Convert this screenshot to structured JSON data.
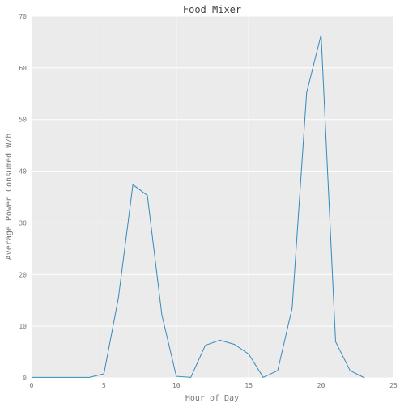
{
  "chart_data": {
    "type": "line",
    "title": "Food Mixer",
    "xlabel": "Hour of Day",
    "ylabel": "Average Power Consumed W/h",
    "xlim": [
      0,
      25
    ],
    "ylim": [
      0,
      70
    ],
    "xticks": [
      0,
      5,
      10,
      15,
      20,
      25
    ],
    "yticks": [
      0,
      10,
      20,
      30,
      40,
      50,
      60,
      70
    ],
    "grid": true,
    "background": "#ebebeb",
    "grid_color": "#ffffff",
    "series": [
      {
        "color": "#348abd",
        "x": [
          0,
          1,
          2,
          3,
          4,
          5,
          6,
          7,
          8,
          9,
          10,
          11,
          12,
          13,
          14,
          15,
          16,
          17,
          18,
          19,
          20,
          21,
          22,
          23
        ],
        "y": [
          0.1,
          0.1,
          0.1,
          0.1,
          0.1,
          0.8,
          15.5,
          37.4,
          35.3,
          12.2,
          0.3,
          0.1,
          6.3,
          7.3,
          6.5,
          4.6,
          0.1,
          1.4,
          13.5,
          55.2,
          66.4,
          7.0,
          1.4,
          0.0
        ]
      }
    ]
  }
}
